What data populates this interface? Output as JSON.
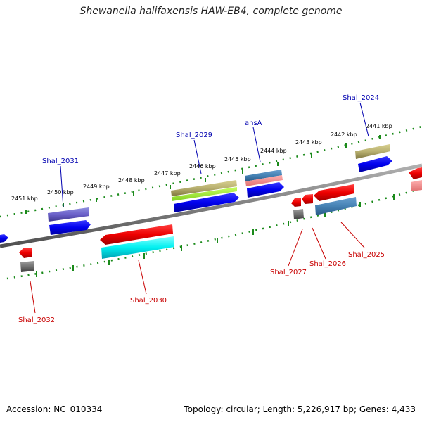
{
  "title": "Shewanella halifaxensis HAW-EB4, complete genome",
  "footer": {
    "accession": "Accession: NC_010334",
    "summary": "Topology: circular; Length: 5,226,917 bp; Genes: 4,433"
  },
  "scale": {
    "ticks": [
      "2451 kbp",
      "2450 kbp",
      "2449 kbp",
      "2448 kbp",
      "2447 kbp",
      "2446 kbp",
      "2445 kbp",
      "2444 kbp",
      "2443 kbp",
      "2442 kbp",
      "2441 kbp"
    ]
  },
  "labels": {
    "top": [
      "Shal_2031",
      "Shal_2029",
      "ansA",
      "Shal_2024"
    ],
    "bottom": [
      "Shal_2032",
      "Shal_2030",
      "Shal_2027",
      "Shal_2026",
      "Shal_2025"
    ]
  },
  "colors": {
    "backbone": "#808080",
    "scale_dots": "#1a8a1a",
    "label_top": "#0000b0",
    "label_bottom": "#c80000"
  }
}
